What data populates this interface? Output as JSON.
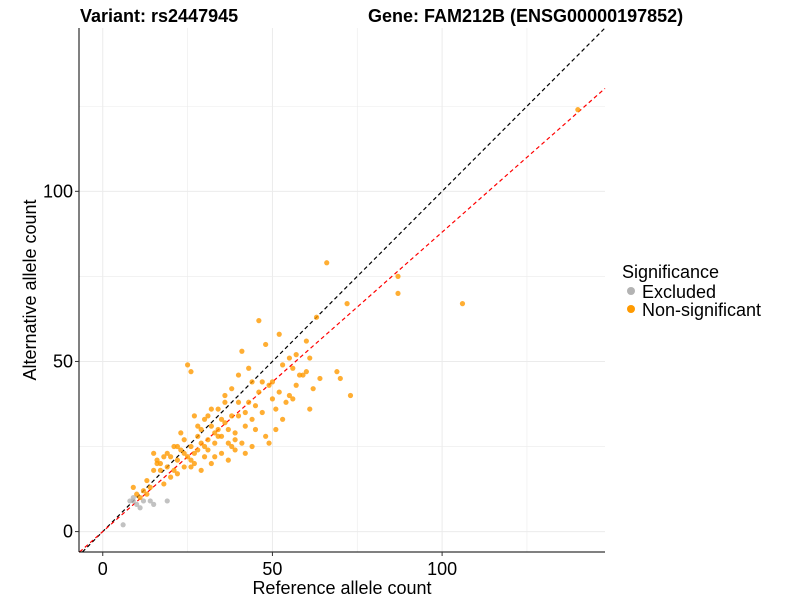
{
  "chart_data": {
    "type": "scatter",
    "title_left": "Variant: rs2447945",
    "title_right": "Gene: FAM212B (ENSG00000197852)",
    "xlabel": "Reference allele count",
    "ylabel": "Alternative allele count",
    "xlim": [
      -7,
      148
    ],
    "ylim": [
      -6,
      148
    ],
    "x_ticks": [
      0,
      50,
      100
    ],
    "y_ticks": [
      0,
      50,
      100
    ],
    "grid": true,
    "legend": {
      "title": "Significance",
      "position": "right",
      "entries": [
        {
          "label": "Excluded",
          "color": "#b3b3b3"
        },
        {
          "label": "Non-significant",
          "color": "#ff9a00"
        }
      ]
    },
    "reference_lines": [
      {
        "name": "y = x",
        "slope": 1.0,
        "intercept": 0,
        "color": "#000000",
        "style": "dashed"
      },
      {
        "name": "fit",
        "slope": 0.88,
        "intercept": 0,
        "color": "#ff0000",
        "style": "dashed"
      }
    ],
    "series": [
      {
        "name": "Excluded",
        "color": "#b3b3b3",
        "points": [
          [
            6,
            2
          ],
          [
            8,
            9
          ],
          [
            9,
            10
          ],
          [
            10,
            8
          ],
          [
            11,
            7
          ],
          [
            12,
            9
          ],
          [
            14,
            9
          ],
          [
            15,
            8
          ],
          [
            19,
            9
          ],
          [
            9,
            9
          ]
        ]
      },
      {
        "name": "Non-significant",
        "color": "#ff9a00",
        "points": [
          [
            140,
            124
          ],
          [
            106,
            67
          ],
          [
            87,
            70
          ],
          [
            87,
            75
          ],
          [
            73,
            40
          ],
          [
            72,
            67
          ],
          [
            69,
            47
          ],
          [
            66,
            79
          ],
          [
            63,
            63
          ],
          [
            61,
            51
          ],
          [
            60,
            56
          ],
          [
            59,
            46
          ],
          [
            58,
            46
          ],
          [
            57,
            43
          ],
          [
            56,
            48
          ],
          [
            55,
            51
          ],
          [
            55,
            40
          ],
          [
            54,
            38
          ],
          [
            53,
            49
          ],
          [
            52,
            41
          ],
          [
            51,
            36
          ],
          [
            50,
            44
          ],
          [
            50,
            39
          ],
          [
            49,
            43
          ],
          [
            48,
            55
          ],
          [
            47,
            44
          ],
          [
            46,
            62
          ],
          [
            46,
            41
          ],
          [
            45,
            37
          ],
          [
            44,
            33
          ],
          [
            44,
            44
          ],
          [
            43,
            38
          ],
          [
            42,
            31
          ],
          [
            42,
            35
          ],
          [
            41,
            26
          ],
          [
            40,
            46
          ],
          [
            40,
            38
          ],
          [
            39,
            29
          ],
          [
            39,
            24
          ],
          [
            38,
            42
          ],
          [
            38,
            34
          ],
          [
            37,
            26
          ],
          [
            37,
            21
          ],
          [
            36,
            32
          ],
          [
            36,
            38
          ],
          [
            35,
            28
          ],
          [
            35,
            23
          ],
          [
            34,
            30
          ],
          [
            34,
            36
          ],
          [
            33,
            26
          ],
          [
            33,
            22
          ],
          [
            32,
            31
          ],
          [
            32,
            20
          ],
          [
            31,
            27
          ],
          [
            31,
            34
          ],
          [
            30,
            25
          ],
          [
            30,
            22
          ],
          [
            29,
            30
          ],
          [
            29,
            18
          ],
          [
            28,
            28
          ],
          [
            28,
            24
          ],
          [
            27,
            34
          ],
          [
            27,
            20
          ],
          [
            26,
            25
          ],
          [
            26,
            21
          ],
          [
            25,
            22
          ],
          [
            25,
            49
          ],
          [
            24,
            27
          ],
          [
            24,
            19
          ],
          [
            23,
            24
          ],
          [
            22,
            21
          ],
          [
            22,
            17
          ],
          [
            21,
            25
          ],
          [
            20,
            22
          ],
          [
            20,
            16
          ],
          [
            19,
            19
          ],
          [
            18,
            22
          ],
          [
            18,
            14
          ],
          [
            17,
            18
          ],
          [
            16,
            21
          ],
          [
            15,
            23
          ],
          [
            15,
            18
          ],
          [
            14,
            13
          ],
          [
            13,
            15
          ],
          [
            13,
            11
          ],
          [
            12,
            12
          ],
          [
            11,
            10
          ],
          [
            10,
            11
          ],
          [
            9,
            13
          ],
          [
            16,
            20
          ],
          [
            21,
            18
          ],
          [
            23,
            29
          ],
          [
            26,
            47
          ],
          [
            27,
            23
          ],
          [
            30,
            33
          ],
          [
            32,
            36
          ],
          [
            34,
            28
          ],
          [
            36,
            40
          ],
          [
            38,
            25
          ],
          [
            40,
            34
          ],
          [
            41,
            53
          ],
          [
            43,
            48
          ],
          [
            44,
            25
          ],
          [
            45,
            30
          ],
          [
            47,
            35
          ],
          [
            48,
            28
          ],
          [
            49,
            26
          ],
          [
            51,
            30
          ],
          [
            53,
            33
          ],
          [
            56,
            39
          ],
          [
            60,
            47
          ],
          [
            62,
            42
          ],
          [
            64,
            45
          ],
          [
            70,
            45
          ],
          [
            52,
            58
          ],
          [
            57,
            52
          ],
          [
            61,
            36
          ],
          [
            39,
            27
          ],
          [
            42,
            23
          ],
          [
            37,
            30
          ],
          [
            35,
            33
          ],
          [
            33,
            29
          ],
          [
            31,
            24
          ],
          [
            29,
            26
          ],
          [
            28,
            31
          ],
          [
            26,
            19
          ],
          [
            24,
            23
          ],
          [
            22,
            25
          ],
          [
            19,
            23
          ],
          [
            17,
            20
          ]
        ]
      }
    ]
  }
}
